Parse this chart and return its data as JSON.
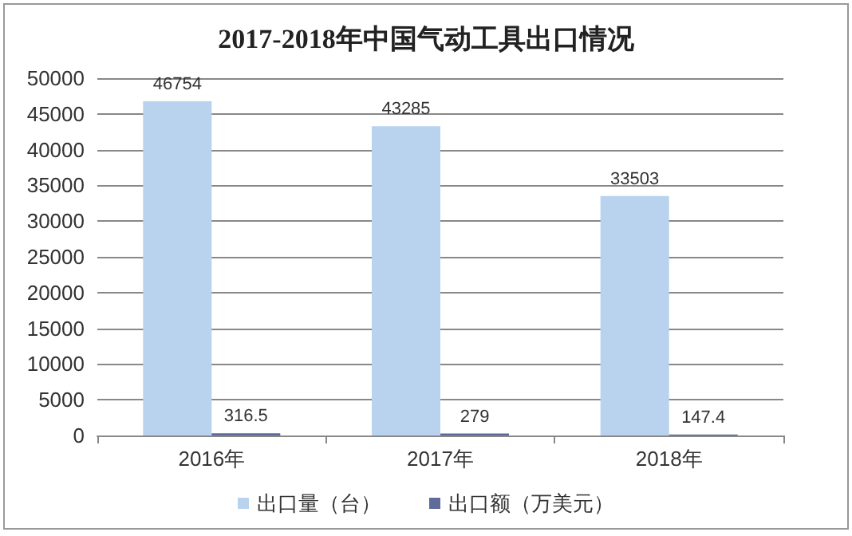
{
  "chart_data": {
    "type": "bar",
    "title": "2017-2018年中国气动工具出口情况",
    "categories": [
      "2016年",
      "2017年",
      "2018年"
    ],
    "series": [
      {
        "name": "出口量（台）",
        "color": "#b9d3ef",
        "values": [
          46754,
          43285,
          33503
        ]
      },
      {
        "name": "出口额（万美元）",
        "color": "#5f6b9a",
        "values": [
          316.5,
          279,
          147.4
        ]
      }
    ],
    "ylim": [
      0,
      50000
    ],
    "yticks": [
      0,
      5000,
      10000,
      15000,
      20000,
      25000,
      30000,
      35000,
      40000,
      45000,
      50000
    ],
    "grid": "y",
    "legend": "bottom",
    "data_labels": true
  }
}
